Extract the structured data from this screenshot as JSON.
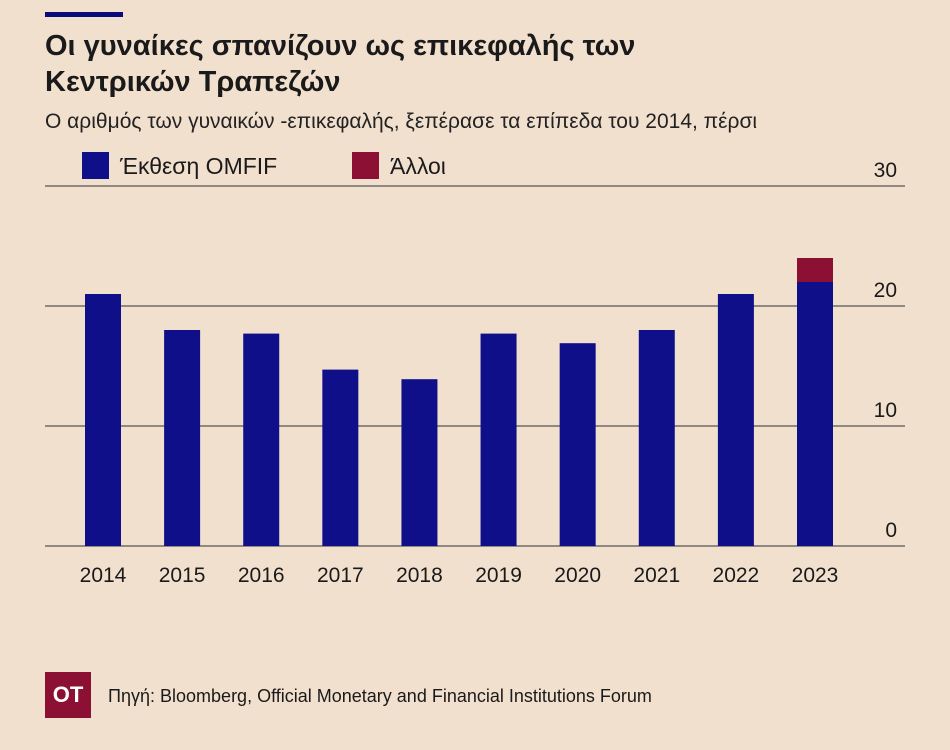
{
  "chart_data": {
    "type": "bar",
    "stacked": true,
    "title": "Οι γυναίκες σπανίζουν ως επικεφαλής των Κεντρικών Τραπεζών",
    "subtitle": "Ο αριθμός των γυναικών -επικεφαλής, ξεπέρασε τα επίπεδα του 2014, πέρσι",
    "categories": [
      "2014",
      "2015",
      "2016",
      "2017",
      "2018",
      "2019",
      "2020",
      "2021",
      "2022",
      "2023"
    ],
    "series": [
      {
        "name": "Έκθεση OMFIF",
        "color": "#0f0f8a",
        "values": [
          21,
          18,
          17.7,
          14.7,
          13.9,
          17.7,
          16.9,
          18,
          21,
          22
        ]
      },
      {
        "name": "Άλλοι",
        "color": "#8c1034",
        "values": [
          0,
          0,
          0,
          0,
          0,
          0,
          0,
          0,
          0,
          2
        ]
      }
    ],
    "ylim": [
      0,
      30
    ],
    "yticks": [
      "0",
      "10",
      "20",
      "30"
    ],
    "grid": true,
    "legend_position": "top-left",
    "axis_side": "right"
  },
  "footer": {
    "logo_text": "OT",
    "source": "Πηγή: Bloomberg, Official Monetary and Financial Institutions Forum"
  }
}
